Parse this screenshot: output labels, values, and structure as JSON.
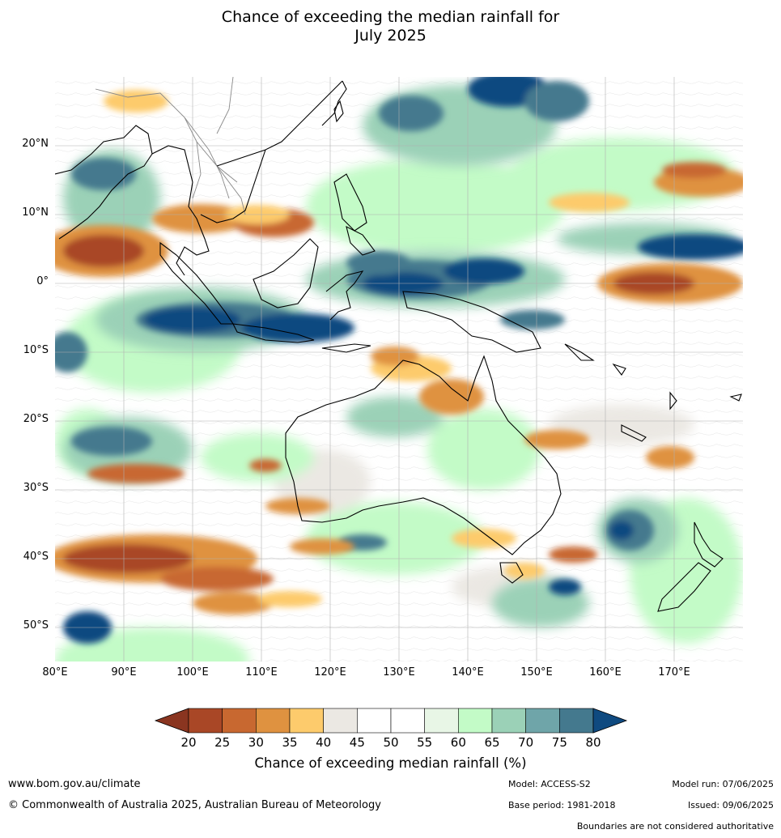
{
  "title": {
    "line1": "Chance of exceeding the median rainfall for",
    "line2": "July 2025"
  },
  "map": {
    "lat_labels": [
      "20°N",
      "10°N",
      "0°",
      "10°S",
      "20°S",
      "30°S",
      "40°S",
      "50°S"
    ],
    "lon_labels": [
      "80°E",
      "90°E",
      "100°E",
      "110°E",
      "120°E",
      "130°E",
      "140°E",
      "150°E",
      "160°E",
      "170°E"
    ],
    "coastline_color": "#000000",
    "border_color": "#888888",
    "gridline_color": "#b0b0b0"
  },
  "colorbar": {
    "ticks": [
      "20",
      "25",
      "30",
      "35",
      "40",
      "45",
      "50",
      "55",
      "60",
      "65",
      "70",
      "75",
      "80"
    ],
    "colors": [
      "#a94726",
      "#c86830",
      "#df9240",
      "#fdcb6c",
      "#ebe8e3",
      "#ffffff",
      "#ffffff",
      "#e8f6e6",
      "#c3fbc7",
      "#9bd1b7",
      "#6fa5a9",
      "#44798e"
    ],
    "under_color": "#8a3520",
    "over_color": "#0f4a80",
    "label": "Chance of exceeding median rainfall (%)"
  },
  "footer": {
    "website": "www.bom.gov.au/climate",
    "copyright": "© Commonwealth of Australia 2025, Australian Bureau of Meteorology",
    "model": "Model: ACCESS-S2",
    "base_period": "Base period: 1981-2018",
    "model_run": "Model run: 07/06/2025",
    "issued": "Issued: 09/06/2025",
    "disclaimer": "Boundaries are not considered authoritative"
  }
}
